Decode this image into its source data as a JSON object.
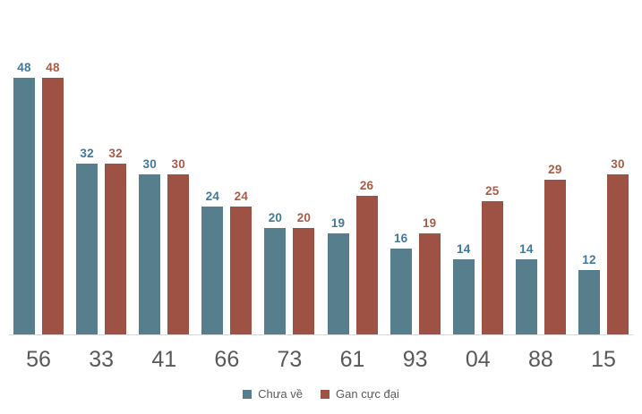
{
  "chart_data": {
    "type": "bar",
    "title": "",
    "xlabel": "",
    "ylabel": "",
    "ylim": [
      0,
      50
    ],
    "grid": false,
    "legend_position": "bottom",
    "categories": [
      "56",
      "33",
      "41",
      "66",
      "73",
      "61",
      "93",
      "04",
      "88",
      "15"
    ],
    "series": [
      {
        "key": "chua-ve",
        "name": "Chưa về",
        "color": "#567e8c",
        "label_color": "#41789b",
        "values": [
          48,
          32,
          30,
          24,
          20,
          19,
          16,
          14,
          14,
          12
        ]
      },
      {
        "key": "gan-cuc-dai",
        "name": "Gan cực đại",
        "color": "#9e5243",
        "label_color": "#ad5a44",
        "values": [
          48,
          32,
          30,
          24,
          20,
          26,
          19,
          25,
          29,
          30
        ]
      }
    ],
    "axis_line_color": "#d9d9d9",
    "category_label_color": "#595959",
    "legend_text_color": "#595959"
  }
}
